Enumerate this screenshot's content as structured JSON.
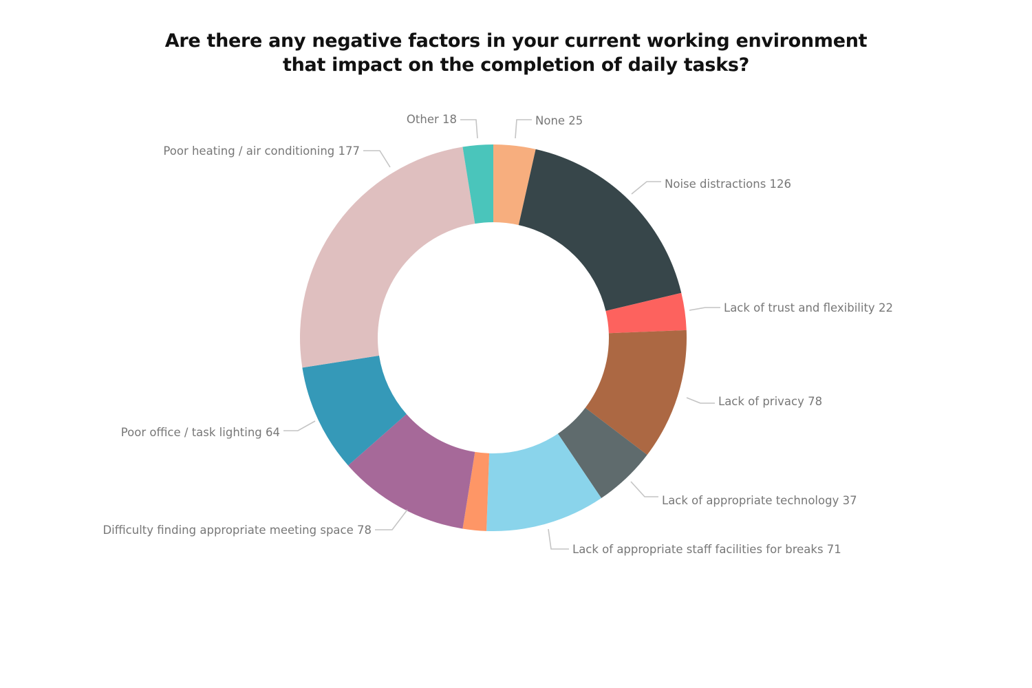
{
  "title": {
    "line1": "Are there any negative factors in your current working environment",
    "line2": "that impact on the completion of daily tasks?"
  },
  "chart_data": {
    "type": "pie",
    "donut": true,
    "title": "Are there any negative factors in your current working environment that impact on the completion of daily tasks?",
    "legend": "none (direct labels)",
    "slices": [
      {
        "label": "None",
        "value": 25,
        "color": "#F7AE7E"
      },
      {
        "label": "Noise distractions",
        "value": 126,
        "color": "#37464A"
      },
      {
        "label": "Lack of trust and flexibility",
        "value": 22,
        "color": "#FD625E"
      },
      {
        "label": "Lack of privacy",
        "value": 78,
        "color": "#AC6843"
      },
      {
        "label": "Lack of appropriate technology",
        "value": 37,
        "color": "#5F6B6D"
      },
      {
        "label": "Lack of appropriate staff facilities for breaks",
        "value": 71,
        "color": "#8AD4EB"
      },
      {
        "label": "",
        "value": 14,
        "color": "#FE9666"
      },
      {
        "label": "Difficulty finding appropriate meeting space",
        "value": 78,
        "color": "#A66999"
      },
      {
        "label": "Poor office / task lighting",
        "value": 64,
        "color": "#3599B8"
      },
      {
        "label": "Poor heating / air conditioning",
        "value": 177,
        "color": "#DFBFBF"
      },
      {
        "label": "Other",
        "value": 18,
        "color": "#4AC5BB"
      }
    ]
  }
}
